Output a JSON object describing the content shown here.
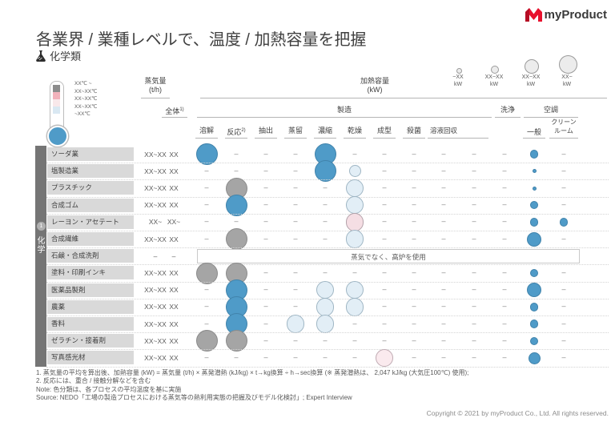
{
  "logo": {
    "text": "myProduct",
    "accent_red": "#e8112d"
  },
  "title": "各業界 / 業種レベルで、温度 / 加熱容量を把握",
  "subtitle": "化学類",
  "temperature_legend": {
    "items": [
      {
        "range": "XX℃ ~",
        "color": "#8c8c8c"
      },
      {
        "range": "XX~XX℃",
        "color": "#f2b2bb"
      },
      {
        "range": "XX~XX℃",
        "color": "#f8e8ea"
      },
      {
        "range": "XX~XX℃",
        "color": "#d9e8f2"
      },
      {
        "range": "~XX℃",
        "color": "#4f9bc8"
      }
    ]
  },
  "size_legend": [
    {
      "label": "~XX",
      "unit": "kW"
    },
    {
      "label": "XX~XX",
      "unit": "kW"
    },
    {
      "label": "XX~XX",
      "unit": "kW"
    },
    {
      "label": "XX~",
      "unit": "kW"
    }
  ],
  "table": {
    "steam_header": {
      "line1": "蒸気量",
      "line2": "(t/h)"
    },
    "capacity_header": {
      "line1": "加熱容量",
      "line2": "(kW)"
    },
    "col_total": "全体",
    "col_total_sup": "1)",
    "group_manufacturing": "製造",
    "group_washing": "洗浄",
    "group_hvac": "空調",
    "manufacturing_subcols": [
      "溶解",
      "反応",
      "抽出",
      "蒸留",
      "濃縮",
      "乾燥",
      "成型",
      "殺菌",
      "溶液回収",
      ""
    ],
    "reaction_sup": "2)",
    "hvac_subcols": [
      "一般",
      "クリーンルーム"
    ],
    "category": {
      "number": "1",
      "label": "化学"
    },
    "rows": [
      {
        "label": "ソーダ業",
        "steam": "XX~XX",
        "total": "XX",
        "bubbles": [
          {
            "col": "melt",
            "color": "blue",
            "size": "xxl"
          },
          {
            "col": "concentrate",
            "color": "blue",
            "size": "xxl"
          },
          {
            "col": "general",
            "color": "blue",
            "size": "sm"
          }
        ]
      },
      {
        "label": "塩製造業",
        "steam": "XX~XX",
        "total": "XX",
        "bubbles": [
          {
            "col": "concentrate",
            "color": "blue",
            "size": "xxl"
          },
          {
            "col": "dry",
            "color": "lightblue",
            "size": "md"
          },
          {
            "col": "general",
            "color": "blue",
            "size": "xs"
          }
        ]
      },
      {
        "label": "プラスチック",
        "steam": "XX~XX",
        "total": "XX",
        "bubbles": [
          {
            "col": "react",
            "color": "gray",
            "size": "xxl"
          },
          {
            "col": "dry",
            "color": "lightblue",
            "size": "xl"
          },
          {
            "col": "general",
            "color": "blue",
            "size": "xs"
          }
        ]
      },
      {
        "label": "合成ゴム",
        "steam": "XX~XX",
        "total": "XX",
        "bubbles": [
          {
            "col": "react",
            "color": "blue",
            "size": "xxl"
          },
          {
            "col": "dry",
            "color": "lightblue",
            "size": "xl"
          },
          {
            "col": "general",
            "color": "blue",
            "size": "sm"
          }
        ]
      },
      {
        "label": "レーヨン・アセテート",
        "steam": "XX~",
        "total": "XX~",
        "bubbles": [
          {
            "col": "dry",
            "color": "pink",
            "size": "xl"
          },
          {
            "col": "general",
            "color": "blue",
            "size": "sm"
          },
          {
            "col": "clean",
            "color": "blue",
            "size": "sm"
          }
        ]
      },
      {
        "label": "合成繊維",
        "steam": "XX~XX",
        "total": "XX",
        "bubbles": [
          {
            "col": "react",
            "color": "gray",
            "size": "xxl"
          },
          {
            "col": "dry",
            "color": "lightblue",
            "size": "xl"
          },
          {
            "col": "general",
            "color": "blue",
            "size": "lg"
          }
        ]
      },
      {
        "label": "石鹸・合成洗剤",
        "steam": "–",
        "total": "–",
        "note": "蒸気でなく、高炉を使用"
      },
      {
        "label": "塗料・印刷インキ",
        "steam": "XX~XX",
        "total": "XX",
        "bubbles": [
          {
            "col": "melt",
            "color": "gray",
            "size": "xxl"
          },
          {
            "col": "react",
            "color": "gray",
            "size": "xxl"
          },
          {
            "col": "general",
            "color": "blue",
            "size": "sm"
          }
        ]
      },
      {
        "label": "医薬品製剤",
        "steam": "XX~XX",
        "total": "XX",
        "bubbles": [
          {
            "col": "react",
            "color": "blue",
            "size": "xxl"
          },
          {
            "col": "concentrate",
            "color": "lightblue",
            "size": "xl"
          },
          {
            "col": "dry",
            "color": "lightblue",
            "size": "xl"
          },
          {
            "col": "general",
            "color": "blue",
            "size": "lg"
          }
        ]
      },
      {
        "label": "農薬",
        "steam": "XX~XX",
        "total": "XX",
        "bubbles": [
          {
            "col": "react",
            "color": "blue",
            "size": "xxl"
          },
          {
            "col": "concentrate",
            "color": "lightblue",
            "size": "xl"
          },
          {
            "col": "dry",
            "color": "lightblue",
            "size": "xl"
          },
          {
            "col": "general",
            "color": "blue",
            "size": "sm"
          }
        ]
      },
      {
        "label": "香料",
        "steam": "XX~XX",
        "total": "XX",
        "bubbles": [
          {
            "col": "react",
            "color": "blue",
            "size": "xxl"
          },
          {
            "col": "distill",
            "color": "lightblue",
            "size": "xl"
          },
          {
            "col": "concentrate",
            "color": "lightblue",
            "size": "xl"
          },
          {
            "col": "general",
            "color": "blue",
            "size": "sm"
          }
        ]
      },
      {
        "label": "ゼラチン・接着剤",
        "steam": "XX~XX",
        "total": "XX",
        "bubbles": [
          {
            "col": "melt",
            "color": "gray",
            "size": "xxl"
          },
          {
            "col": "react",
            "color": "gray",
            "size": "xxl"
          },
          {
            "col": "general",
            "color": "blue",
            "size": "sm"
          }
        ]
      },
      {
        "label": "写真感光材",
        "steam": "XX~XX",
        "total": "XX",
        "bubbles": [
          {
            "col": "mold",
            "color": "palepink",
            "size": "xl"
          },
          {
            "col": "general",
            "color": "blue",
            "size": "md"
          }
        ]
      }
    ]
  },
  "bubble_colors": {
    "blue": {
      "fill": "#4f9bc8",
      "border": "#4183ab"
    },
    "gray": {
      "fill": "#a5a5a5",
      "border": "#8b8b8b"
    },
    "lightblue": {
      "fill": "#e2eef6",
      "border": "#9fb6c4"
    },
    "pink": {
      "fill": "#f5dee4",
      "border": "#b4a2aa"
    },
    "palepink": {
      "fill": "#faeaee",
      "border": "#bfaab2"
    }
  },
  "footnotes": [
    "1. 蒸気量の平均を算出後、加熱容量 (kW) = 蒸気量 (t/h) × 蒸発潜熱 (kJ/kg) × t→kg換算 ÷ h→sec換算 (※ 蒸発潜熱は、 2,047 kJ/kg (大気圧100℃) 使用);",
    "2. 反応には、重合 / 接触分解などを含む",
    "Note: 色分類は、各プロセスの平均温度を基に実施",
    "Source: NEDO「工場の製造プロセスにおける蒸気等の熱利用実態の把握及びモデル化検討」;  Expert Interview"
  ],
  "copyright": "Copyright © 2021 by myProduct Co., Ltd.  All rights reserved.",
  "chart_data": {
    "type": "heatmap",
    "title": "各業界 / 業種レベルで、温度 / 加熱容量を把握",
    "subtitle": "化学類",
    "x_categories": [
      "蒸気量(t/h)",
      "全体",
      "溶解",
      "反応",
      "抽出",
      "蒸留",
      "濃縮",
      "乾燥",
      "成型",
      "殺菌",
      "溶液回収",
      "",
      "洗浄",
      "空調:一般",
      "空調:クリーンルーム"
    ],
    "y_categories": [
      "ソーダ業",
      "塩製造業",
      "プラスチック",
      "合成ゴム",
      "レーヨン・アセテート",
      "合成繊維",
      "石鹸・合成洗剤",
      "塗料・印刷インキ",
      "医薬品製剤",
      "農薬",
      "香料",
      "ゼラチン・接着剤",
      "写真感光材"
    ],
    "size_scale_kW": [
      "~XX",
      "XX~XX",
      "XX~XX",
      "XX~"
    ],
    "color_scale_temp": [
      "XX℃~ (濃灰)",
      "XX~XX℃ (ピンク)",
      "XX~XX℃ (淡ピンク)",
      "XX~XX℃ (淡青)",
      "~XX℃ (青)"
    ],
    "points": [
      [
        "ソーダ業",
        "溶解",
        "blue",
        "xxl"
      ],
      [
        "ソーダ業",
        "濃縮",
        "blue",
        "xxl"
      ],
      [
        "ソーダ業",
        "空調:一般",
        "blue",
        "sm"
      ],
      [
        "塩製造業",
        "濃縮",
        "blue",
        "xxl"
      ],
      [
        "塩製造業",
        "乾燥",
        "lightblue",
        "md"
      ],
      [
        "塩製造業",
        "空調:一般",
        "blue",
        "xs"
      ],
      [
        "プラスチック",
        "反応",
        "gray",
        "xxl"
      ],
      [
        "プラスチック",
        "乾燥",
        "lightblue",
        "xl"
      ],
      [
        "プラスチック",
        "空調:一般",
        "blue",
        "xs"
      ],
      [
        "合成ゴム",
        "反応",
        "blue",
        "xxl"
      ],
      [
        "合成ゴム",
        "乾燥",
        "lightblue",
        "xl"
      ],
      [
        "合成ゴム",
        "空調:一般",
        "blue",
        "sm"
      ],
      [
        "レーヨン・アセテート",
        "乾燥",
        "pink",
        "xl"
      ],
      [
        "レーヨン・アセテート",
        "空調:一般",
        "blue",
        "sm"
      ],
      [
        "レーヨン・アセテート",
        "空調:クリーンルーム",
        "blue",
        "sm"
      ],
      [
        "合成繊維",
        "反応",
        "gray",
        "xxl"
      ],
      [
        "合成繊維",
        "乾燥",
        "lightblue",
        "xl"
      ],
      [
        "合成繊維",
        "空調:一般",
        "blue",
        "lg"
      ],
      [
        "石鹸・合成洗剤",
        "(全工程)",
        "note",
        "蒸気でなく、高炉を使用"
      ],
      [
        "塗料・印刷インキ",
        "溶解",
        "gray",
        "xxl"
      ],
      [
        "塗料・印刷インキ",
        "反応",
        "gray",
        "xxl"
      ],
      [
        "塗料・印刷インキ",
        "空調:一般",
        "blue",
        "sm"
      ],
      [
        "医薬品製剤",
        "反応",
        "blue",
        "xxl"
      ],
      [
        "医薬品製剤",
        "濃縮",
        "lightblue",
        "xl"
      ],
      [
        "医薬品製剤",
        "乾燥",
        "lightblue",
        "xl"
      ],
      [
        "医薬品製剤",
        "空調:一般",
        "blue",
        "lg"
      ],
      [
        "農薬",
        "反応",
        "blue",
        "xxl"
      ],
      [
        "農薬",
        "濃縮",
        "lightblue",
        "xl"
      ],
      [
        "農薬",
        "乾燥",
        "lightblue",
        "xl"
      ],
      [
        "農薬",
        "空調:一般",
        "blue",
        "sm"
      ],
      [
        "香料",
        "反応",
        "blue",
        "xxl"
      ],
      [
        "香料",
        "蒸留",
        "lightblue",
        "xl"
      ],
      [
        "香料",
        "濃縮",
        "lightblue",
        "xl"
      ],
      [
        "香料",
        "空調:一般",
        "blue",
        "sm"
      ],
      [
        "ゼラチン・接着剤",
        "溶解",
        "gray",
        "xxl"
      ],
      [
        "ゼラチン・接着剤",
        "反応",
        "gray",
        "xxl"
      ],
      [
        "ゼラチン・接着剤",
        "空調:一般",
        "blue",
        "sm"
      ],
      [
        "写真感光材",
        "成型",
        "palepink",
        "xl"
      ],
      [
        "写真感光材",
        "空調:一般",
        "blue",
        "md"
      ]
    ]
  }
}
